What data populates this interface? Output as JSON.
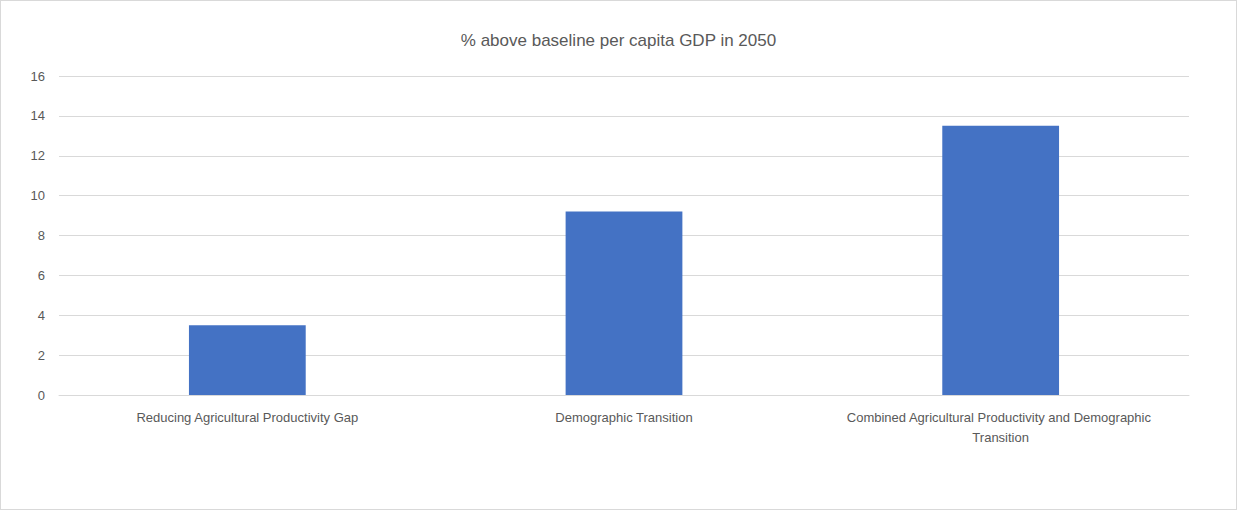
{
  "chart_data": {
    "type": "bar",
    "title": "% above baseline per capita GDP in 2050",
    "categories": [
      "Reducing Agricultural Productivity Gap",
      "Demographic Transition",
      "Combined Agricultural Productivity and Demographic Transition"
    ],
    "values": [
      3.5,
      9.2,
      13.5
    ],
    "color": "#4472c4",
    "ylim": [
      0,
      16
    ],
    "yticks": [
      0,
      2,
      4,
      6,
      8,
      10,
      12,
      14,
      16
    ],
    "grid": true
  }
}
